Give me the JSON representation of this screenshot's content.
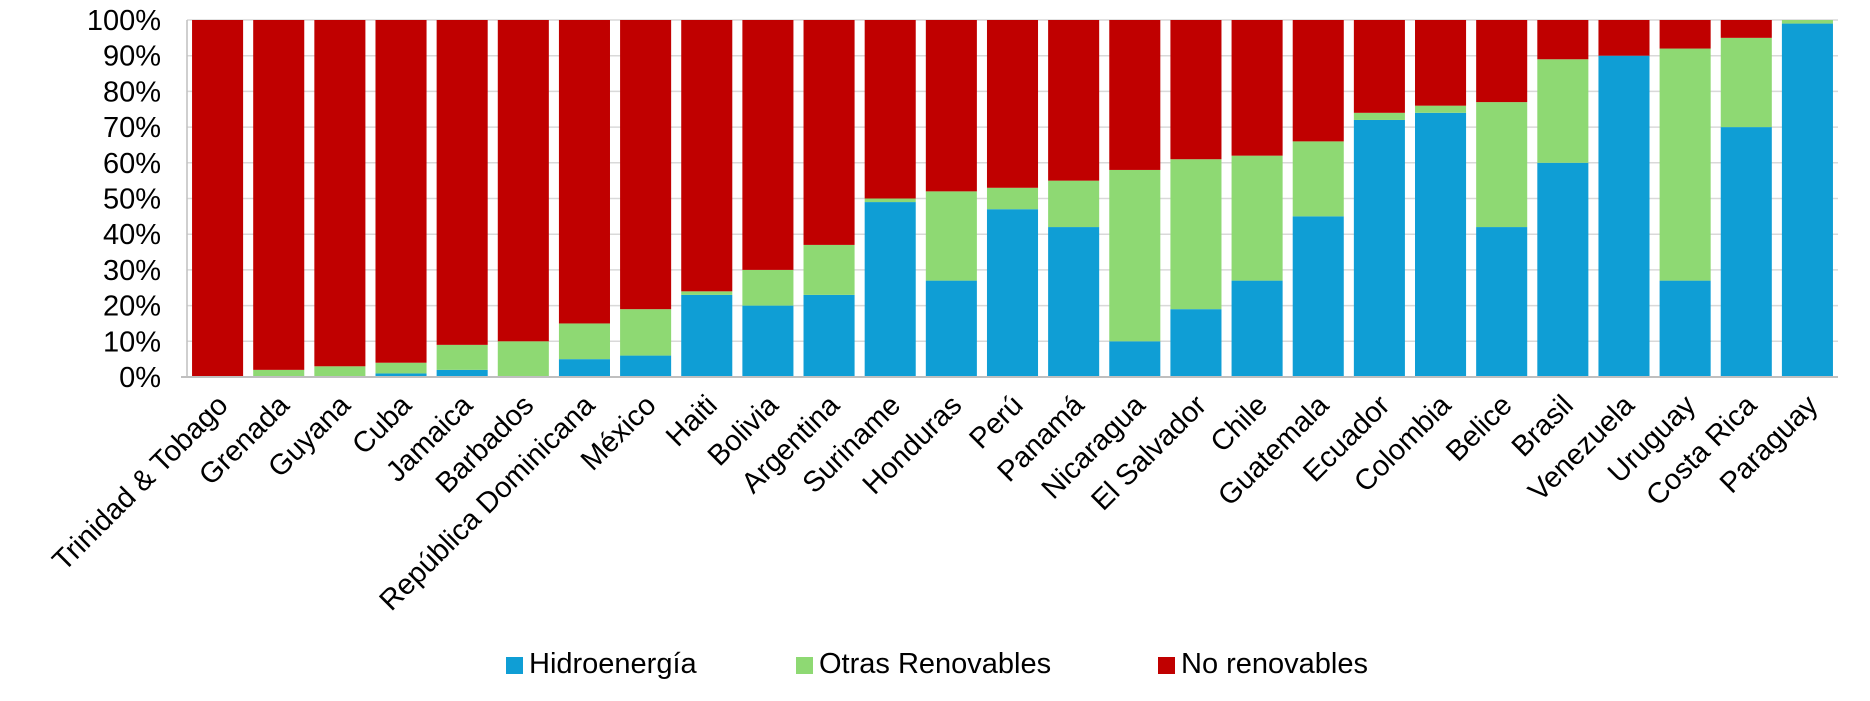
{
  "chart_data": {
    "type": "bar",
    "stacked": true,
    "percent_stacked": true,
    "title": "",
    "xlabel": "",
    "ylabel": "",
    "ylim": [
      0,
      100
    ],
    "yticks": [
      "0%",
      "10%",
      "20%",
      "30%",
      "40%",
      "50%",
      "60%",
      "70%",
      "80%",
      "90%",
      "100%"
    ],
    "grid": true,
    "legend_position": "bottom",
    "categories": [
      "Trinidad & Tobago",
      "Grenada",
      "Guyana",
      "Cuba",
      "Jamaica",
      "Barbados",
      "República Dominicana",
      "México",
      "Haiti",
      "Bolivia",
      "Argentina",
      "Suriname",
      "Honduras",
      "Perú",
      "Panamá",
      "Nicaragua",
      "El Salvador",
      "Chile",
      "Guatemala",
      "Ecuador",
      "Colombia",
      "Belice",
      "Brasil",
      "Venezuela",
      "Uruguay",
      "Costa Rica",
      "Paraguay"
    ],
    "series": [
      {
        "name": "Hidroenergía",
        "color": "#0f9ed5",
        "values": [
          0,
          0,
          0,
          1,
          2,
          0,
          5,
          6,
          23,
          20,
          23,
          49,
          27,
          47,
          42,
          10,
          19,
          27,
          45,
          72,
          74,
          42,
          60,
          90,
          27,
          70,
          99
        ]
      },
      {
        "name": "Otras Renovables",
        "color": "#8ed973",
        "values": [
          0,
          2,
          3,
          3,
          7,
          10,
          10,
          13,
          1,
          10,
          14,
          1,
          25,
          6,
          13,
          48,
          42,
          35,
          21,
          2,
          2,
          35,
          29,
          0,
          65,
          25,
          1
        ]
      },
      {
        "name": "No renovables",
        "color": "#c00000",
        "values": [
          100,
          98,
          97,
          96,
          91,
          90,
          85,
          81,
          76,
          70,
          63,
          50,
          48,
          47,
          45,
          42,
          39,
          38,
          34,
          26,
          24,
          23,
          11,
          10,
          8,
          5,
          0
        ]
      }
    ]
  }
}
